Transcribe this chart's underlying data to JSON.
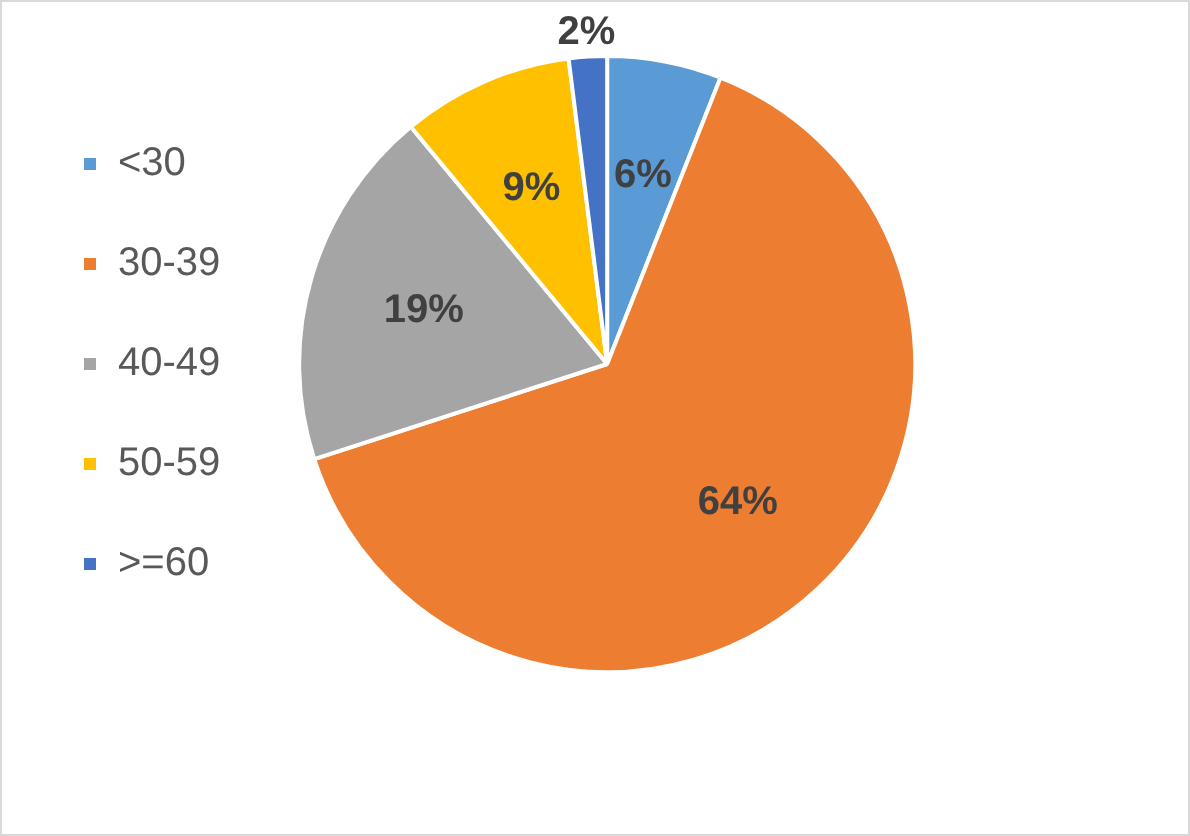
{
  "chart_data": {
    "type": "pie",
    "categories": [
      "<30",
      "30-39",
      "40-49",
      "50-59",
      ">=60"
    ],
    "values": [
      6,
      64,
      19,
      9,
      2
    ],
    "colors": [
      "#5b9bd5",
      "#ed7d31",
      "#a5a5a5",
      "#ffc000",
      "#4472c4"
    ],
    "value_labels": [
      "6%",
      "64%",
      "19%",
      "9%",
      "2%"
    ],
    "legend": "left"
  }
}
